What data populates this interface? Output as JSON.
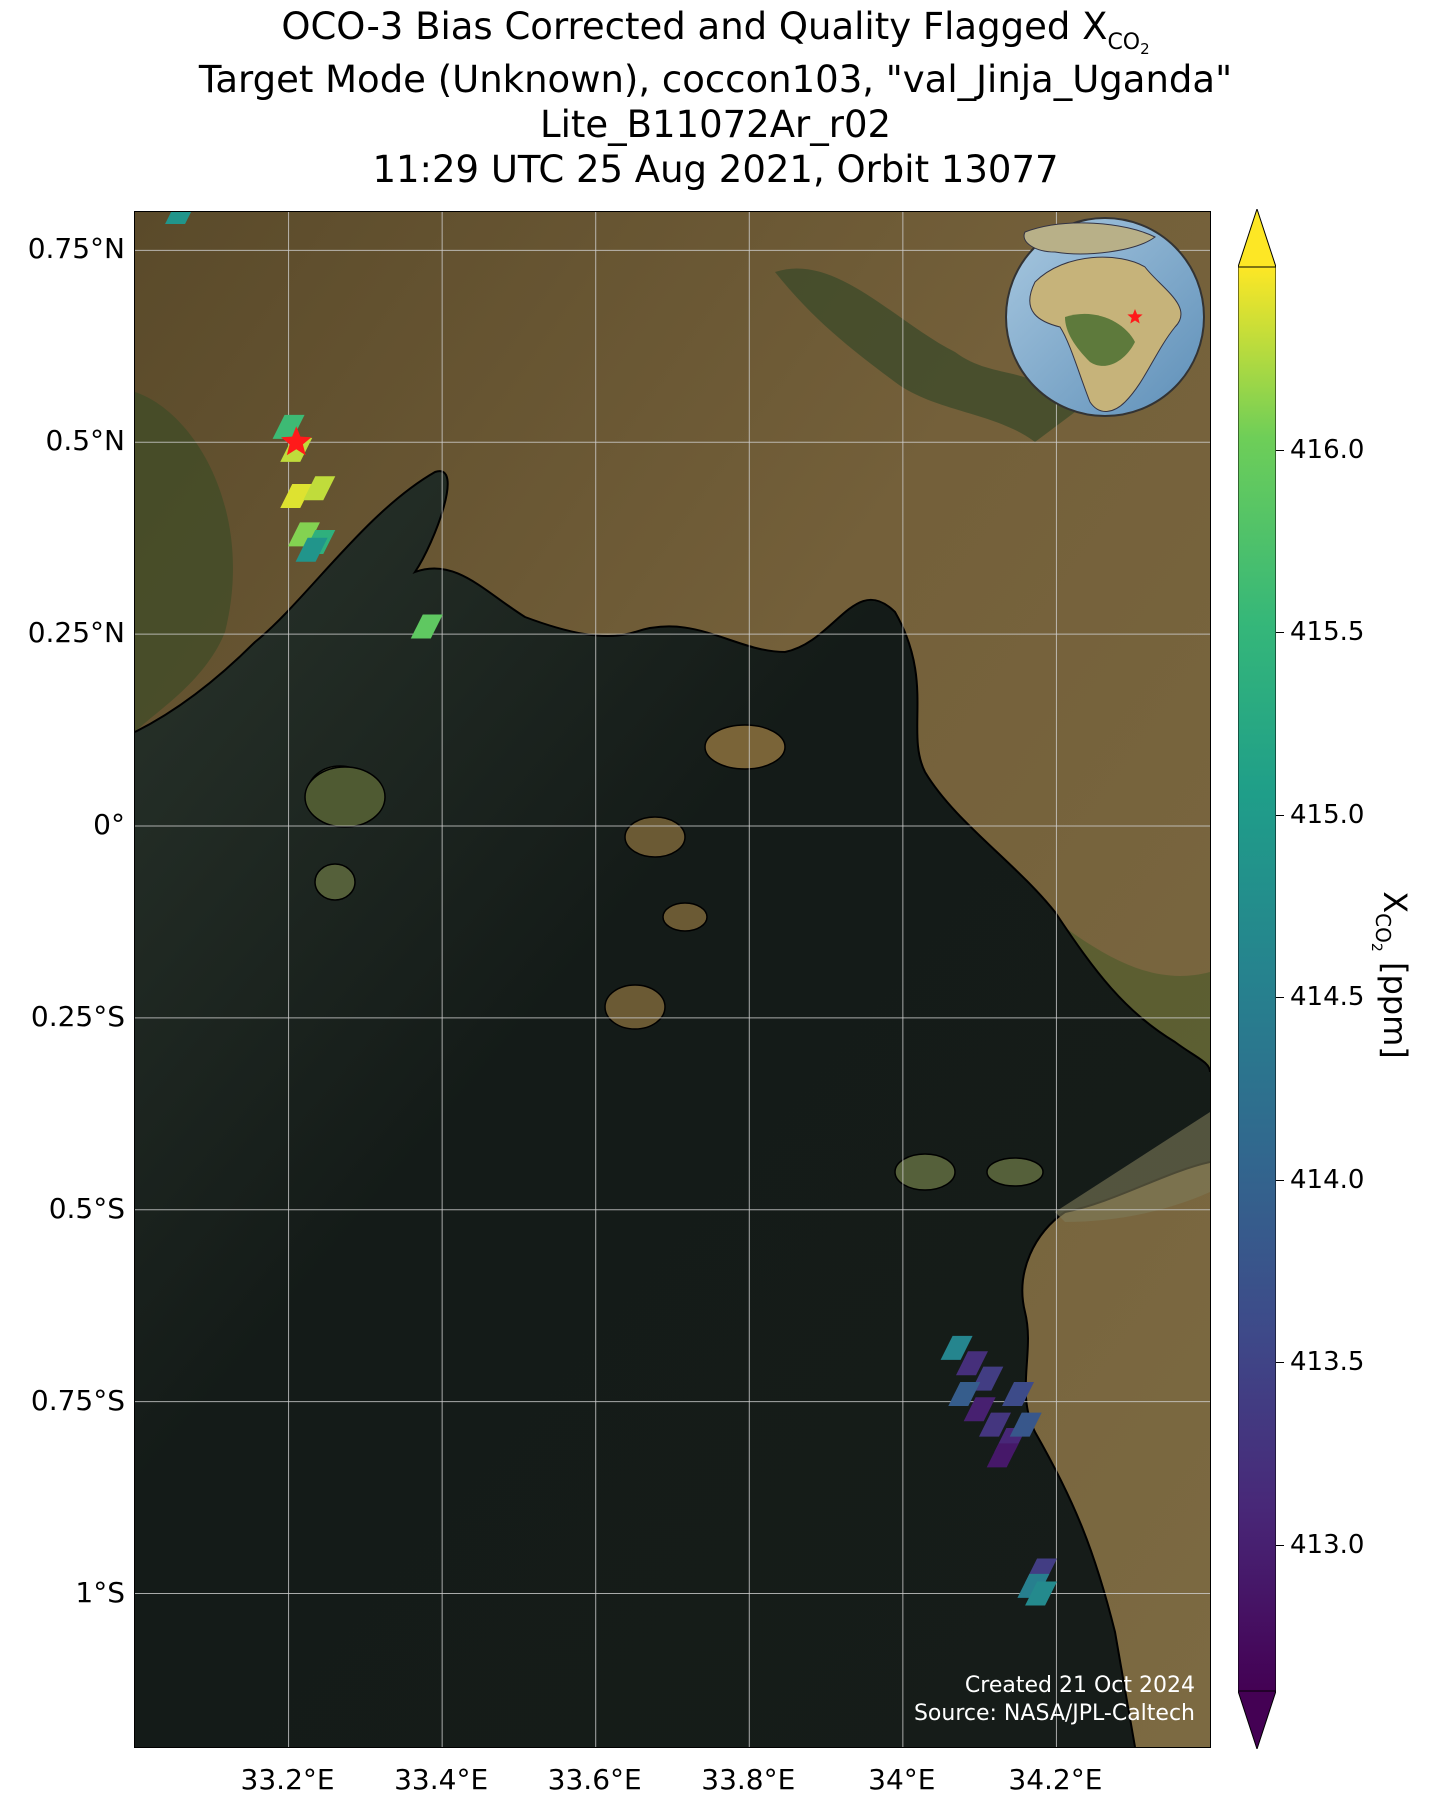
{
  "title": {
    "line1_prefix": "OCO-3 Bias Corrected and Quality Flagged X",
    "line1_sub": "CO",
    "line1_sub2": "2",
    "line2": "Target Mode (Unknown), coccon103, \"val_Jinja_Uganda\"",
    "line3": "Lite_B11072Ar_r02",
    "line4": "11:29 UTC 25 Aug 2021, Orbit 13077"
  },
  "map": {
    "lat_labels": [
      "0.75°N",
      "0.5°N",
      "0.25°N",
      "0°",
      "0.25°S",
      "0.5°S",
      "0.75°S",
      "1°S"
    ],
    "lon_labels": [
      "33.2°E",
      "33.4°E",
      "33.6°E",
      "33.8°E",
      "34°E",
      "34.2°E"
    ],
    "target_marker": "star",
    "lat_range": [
      -1.2,
      0.8
    ],
    "lon_range": [
      33.0,
      34.4
    ],
    "target_location": {
      "lat": 0.5,
      "lon": 33.21
    },
    "colors": {
      "land": "#6b5a32",
      "water": "#161d1a",
      "marker": "#ff1a1a",
      "grid": "#cfcfcf",
      "coast": "#000000"
    }
  },
  "globe_inset": {
    "marker": "star",
    "target_location": {
      "lat": 0.5,
      "lon": 33.21
    }
  },
  "colorbar": {
    "label_main": "X",
    "label_sub": "CO",
    "label_sub2": "2",
    "label_units": " [ppm]",
    "colormap": "viridis",
    "range": [
      412.6,
      416.5
    ],
    "extend": "both",
    "ticks": [
      "416.0",
      "415.5",
      "415.0",
      "414.5",
      "414.0",
      "413.5",
      "413.0"
    ]
  },
  "credit": {
    "line1": "Created 21 Oct 2024",
    "line2": "Source: NASA/JPL-Caltech"
  },
  "soundings": [
    {
      "lat": 0.8,
      "lon": 33.06,
      "xco2": 414.9
    },
    {
      "lat": 0.52,
      "lon": 33.2,
      "xco2": 415.6
    },
    {
      "lat": 0.49,
      "lon": 33.21,
      "xco2": 416.3
    },
    {
      "lat": 0.43,
      "lon": 33.21,
      "xco2": 416.4
    },
    {
      "lat": 0.44,
      "lon": 33.24,
      "xco2": 416.3
    },
    {
      "lat": 0.38,
      "lon": 33.22,
      "xco2": 416.1
    },
    {
      "lat": 0.37,
      "lon": 33.24,
      "xco2": 415.4
    },
    {
      "lat": 0.36,
      "lon": 33.23,
      "xco2": 414.9
    },
    {
      "lat": 0.26,
      "lon": 33.38,
      "xco2": 415.9
    },
    {
      "lat": -0.68,
      "lon": 34.07,
      "xco2": 414.6
    },
    {
      "lat": -0.7,
      "lon": 34.09,
      "xco2": 413.2
    },
    {
      "lat": -0.72,
      "lon": 34.11,
      "xco2": 413.4
    },
    {
      "lat": -0.74,
      "lon": 34.08,
      "xco2": 413.9
    },
    {
      "lat": -0.76,
      "lon": 34.1,
      "xco2": 413.0
    },
    {
      "lat": -0.78,
      "lon": 34.12,
      "xco2": 413.3
    },
    {
      "lat": -0.8,
      "lon": 34.14,
      "xco2": 413.1
    },
    {
      "lat": -0.74,
      "lon": 34.15,
      "xco2": 413.6
    },
    {
      "lat": -0.78,
      "lon": 34.16,
      "xco2": 413.8
    },
    {
      "lat": -0.82,
      "lon": 34.13,
      "xco2": 412.9
    },
    {
      "lat": -0.97,
      "lon": 34.18,
      "xco2": 413.4
    },
    {
      "lat": -0.99,
      "lon": 34.17,
      "xco2": 414.5
    },
    {
      "lat": -1.0,
      "lon": 34.18,
      "xco2": 414.7
    }
  ]
}
